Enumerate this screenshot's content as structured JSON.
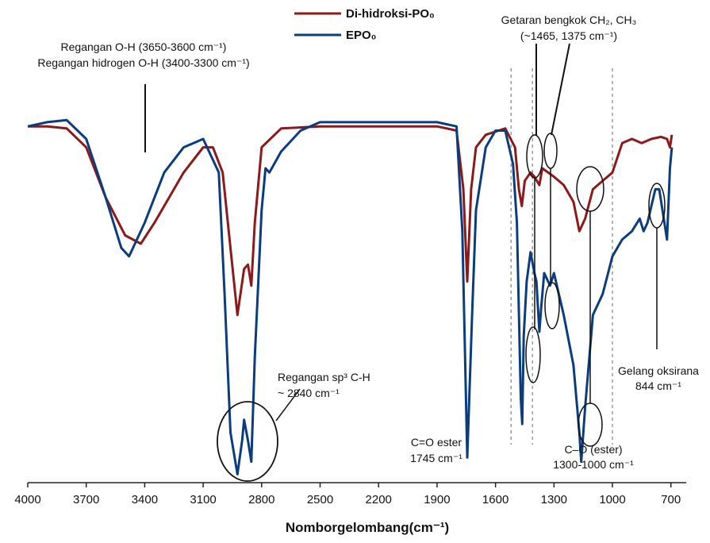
{
  "chart_data": {
    "type": "line",
    "title": "",
    "xlabel": "Nomborgelombang(cm⁻¹)",
    "ylabel": "",
    "x_reversed": true,
    "xlim": [
      4000,
      650
    ],
    "ylim": [
      0,
      100
    ],
    "grid": false,
    "legend_position": "top-center",
    "x_ticks": [
      4000,
      3700,
      3400,
      3100,
      2800,
      2500,
      2200,
      1900,
      1600,
      1300,
      1000,
      700
    ],
    "series": [
      {
        "name": "Di-hidroksi-PO₀",
        "color": "#8b1a1a",
        "points": [
          [
            4000,
            85
          ],
          [
            3900,
            85
          ],
          [
            3800,
            84.5
          ],
          [
            3700,
            80
          ],
          [
            3600,
            68
          ],
          [
            3500,
            59
          ],
          [
            3420,
            57
          ],
          [
            3350,
            62
          ],
          [
            3200,
            74
          ],
          [
            3100,
            80
          ],
          [
            3050,
            80
          ],
          [
            3000,
            74
          ],
          [
            2960,
            56
          ],
          [
            2924,
            40
          ],
          [
            2890,
            51
          ],
          [
            2870,
            52
          ],
          [
            2853,
            47
          ],
          [
            2835,
            62
          ],
          [
            2800,
            80
          ],
          [
            2700,
            84.5
          ],
          [
            2500,
            85
          ],
          [
            2200,
            85
          ],
          [
            1900,
            85
          ],
          [
            1800,
            84
          ],
          [
            1765,
            70
          ],
          [
            1745,
            48
          ],
          [
            1725,
            70
          ],
          [
            1700,
            80
          ],
          [
            1650,
            83
          ],
          [
            1550,
            84.5
          ],
          [
            1500,
            80
          ],
          [
            1480,
            70
          ],
          [
            1465,
            66
          ],
          [
            1450,
            72
          ],
          [
            1420,
            74
          ],
          [
            1400,
            73
          ],
          [
            1375,
            71
          ],
          [
            1360,
            75
          ],
          [
            1300,
            73
          ],
          [
            1250,
            71
          ],
          [
            1200,
            67
          ],
          [
            1170,
            60
          ],
          [
            1140,
            63
          ],
          [
            1100,
            70
          ],
          [
            1050,
            72
          ],
          [
            1000,
            74
          ],
          [
            950,
            81
          ],
          [
            900,
            82
          ],
          [
            850,
            81
          ],
          [
            800,
            82
          ],
          [
            750,
            82.5
          ],
          [
            720,
            82
          ],
          [
            705,
            80
          ],
          [
            695,
            83
          ]
        ]
      },
      {
        "name": "EPO₀",
        "color": "#0b3d7e",
        "points": [
          [
            4000,
            85
          ],
          [
            3900,
            86
          ],
          [
            3800,
            86.5
          ],
          [
            3700,
            82
          ],
          [
            3600,
            68
          ],
          [
            3520,
            56
          ],
          [
            3480,
            54
          ],
          [
            3400,
            62
          ],
          [
            3300,
            74
          ],
          [
            3200,
            80
          ],
          [
            3100,
            82
          ],
          [
            3020,
            74
          ],
          [
            2990,
            45
          ],
          [
            2960,
            12
          ],
          [
            2924,
            2
          ],
          [
            2900,
            10
          ],
          [
            2890,
            15
          ],
          [
            2870,
            10
          ],
          [
            2853,
            5
          ],
          [
            2835,
            30
          ],
          [
            2800,
            65
          ],
          [
            2780,
            75
          ],
          [
            2760,
            74
          ],
          [
            2700,
            79
          ],
          [
            2600,
            84
          ],
          [
            2500,
            86
          ],
          [
            2200,
            86
          ],
          [
            1900,
            86
          ],
          [
            1800,
            85
          ],
          [
            1770,
            60
          ],
          [
            1745,
            6
          ],
          [
            1720,
            40
          ],
          [
            1700,
            65
          ],
          [
            1650,
            80
          ],
          [
            1600,
            84
          ],
          [
            1550,
            84
          ],
          [
            1510,
            76
          ],
          [
            1490,
            62
          ],
          [
            1470,
            20
          ],
          [
            1463,
            14
          ],
          [
            1455,
            35
          ],
          [
            1440,
            48
          ],
          [
            1420,
            55
          ],
          [
            1400,
            50
          ],
          [
            1390,
            48
          ],
          [
            1375,
            36
          ],
          [
            1365,
            42
          ],
          [
            1350,
            50
          ],
          [
            1320,
            47
          ],
          [
            1300,
            50
          ],
          [
            1250,
            40
          ],
          [
            1200,
            28
          ],
          [
            1170,
            12
          ],
          [
            1160,
            5
          ],
          [
            1140,
            18
          ],
          [
            1100,
            40
          ],
          [
            1050,
            45
          ],
          [
            1000,
            54
          ],
          [
            950,
            58
          ],
          [
            900,
            60
          ],
          [
            860,
            63
          ],
          [
            840,
            60
          ],
          [
            820,
            62
          ],
          [
            800,
            66
          ],
          [
            780,
            70
          ],
          [
            760,
            70
          ],
          [
            740,
            64
          ],
          [
            720,
            58
          ],
          [
            705,
            75
          ],
          [
            695,
            80
          ]
        ]
      }
    ],
    "reference_lines_x": [
      1520,
      1410,
      1000
    ]
  },
  "annotations": {
    "oh_line1": "Regangan O-H (3650-3600 cm⁻¹)",
    "oh_line2": "Regangan hidrogen O-H (3400-3300 cm⁻¹)",
    "bend_line1": "Getaran bengkok CH₂, CH₃",
    "bend_line2": "(~1465, 1375 cm⁻¹)",
    "ch_line1": "Regangan  sp³ C-H",
    "ch_line2": "~ 2840 cm⁻¹",
    "co_ester_line1": "C=O ester",
    "co_ester_line2": "1745 cm⁻¹",
    "c_o_line1": "C–O (ester)",
    "c_o_line2": "1300-1000  cm⁻¹",
    "oxirane_line1": "Gelang oksirana",
    "oxirane_line2": "844 cm⁻¹"
  }
}
